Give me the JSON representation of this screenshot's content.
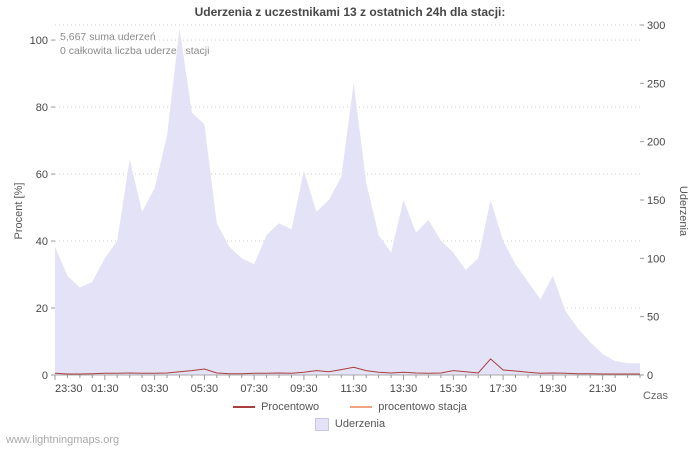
{
  "title": "Uderzenia z uczestnikami 13 z ostatnich 24h dla stacji:",
  "annotations": {
    "sum": "5,667 suma uderzeń",
    "station": "0 całkowita liczba uderzeń stacji"
  },
  "axes": {
    "left_label": "Procent  [%]",
    "right_label": "Uderzenia",
    "x_label": "Czas"
  },
  "legend": [
    {
      "label": "Procentowo",
      "color": "#a93e3e",
      "type": "line"
    },
    {
      "label": "procentowo stacja",
      "color": "#f2a481",
      "type": "line"
    },
    {
      "label": "Uderzenia",
      "color": "#e4e2f7",
      "border": "#cac6ea",
      "type": "area"
    }
  ],
  "watermark": "www.lightningmaps.org",
  "chart_data": {
    "type": "area",
    "title": "Uderzenia z uczestnikami 13 z ostatnich 24h dla stacji:",
    "xlabel": "Czas",
    "ylabel_left": "Procent [%]",
    "ylabel_right": "Uderzenia",
    "left_ylim": [
      0,
      104.5
    ],
    "right_ylim": [
      0,
      300
    ],
    "left_ticks": [
      0,
      20,
      40,
      60,
      80,
      100
    ],
    "right_ticks": [
      0,
      50,
      100,
      150,
      200,
      250,
      300
    ],
    "grid": true,
    "legend_position": "bottom",
    "x": [
      "23:30",
      "00:00",
      "00:30",
      "01:00",
      "01:30",
      "02:00",
      "02:30",
      "03:00",
      "03:30",
      "04:00",
      "04:30",
      "05:00",
      "05:30",
      "06:00",
      "06:30",
      "07:00",
      "07:30",
      "08:00",
      "08:30",
      "09:00",
      "09:30",
      "10:00",
      "10:30",
      "11:00",
      "11:30",
      "12:00",
      "12:30",
      "13:00",
      "13:30",
      "14:00",
      "14:30",
      "15:00",
      "15:30",
      "16:00",
      "16:30",
      "17:00",
      "17:30",
      "18:00",
      "18:30",
      "19:00",
      "19:30",
      "20:00",
      "20:30",
      "21:00",
      "21:30",
      "22:00",
      "22:30",
      "23:00"
    ],
    "x_tick_labels": [
      "23:30",
      "01:30",
      "03:30",
      "05:30",
      "07:30",
      "09:30",
      "11:30",
      "13:30",
      "15:30",
      "17:30",
      "19:30",
      "21:30"
    ],
    "series": [
      {
        "name": "Uderzenia",
        "axis": "right",
        "type": "area",
        "color": "#e4e2f7",
        "values": [
          110,
          85,
          75,
          80,
          100,
          115,
          185,
          140,
          160,
          205,
          297,
          225,
          215,
          130,
          110,
          100,
          95,
          120,
          130,
          125,
          175,
          140,
          150,
          170,
          250,
          165,
          120,
          105,
          150,
          122,
          133,
          115,
          105,
          90,
          100,
          150,
          115,
          95,
          80,
          65,
          85,
          55,
          40,
          28,
          18,
          12,
          10,
          10
        ]
      },
      {
        "name": "Procentowo",
        "axis": "left",
        "type": "line",
        "color": "#a93e3e",
        "values": [
          0.5,
          0.3,
          0.3,
          0.4,
          0.5,
          0.5,
          0.6,
          0.5,
          0.5,
          0.6,
          1.0,
          1.3,
          1.8,
          0.6,
          0.4,
          0.4,
          0.5,
          0.5,
          0.6,
          0.5,
          0.8,
          1.3,
          1.0,
          1.6,
          2.3,
          1.3,
          0.8,
          0.6,
          0.8,
          0.6,
          0.5,
          0.6,
          1.3,
          1.0,
          0.6,
          4.8,
          1.5,
          1.2,
          0.8,
          0.5,
          0.6,
          0.5,
          0.4,
          0.4,
          0.3,
          0.3,
          0.3,
          0.3
        ]
      },
      {
        "name": "procentowo stacja",
        "axis": "left",
        "type": "line",
        "color": "#f2a481",
        "values": [
          0,
          0,
          0,
          0,
          0,
          0,
          0,
          0,
          0,
          0,
          0,
          0,
          0,
          0,
          0,
          0,
          0,
          0,
          0,
          0,
          0,
          0,
          0,
          0,
          0,
          0,
          0,
          0,
          0,
          0,
          0,
          0,
          0,
          0,
          0,
          0,
          0,
          0,
          0,
          0,
          0,
          0,
          0,
          0,
          0,
          0,
          0,
          0
        ]
      }
    ]
  }
}
